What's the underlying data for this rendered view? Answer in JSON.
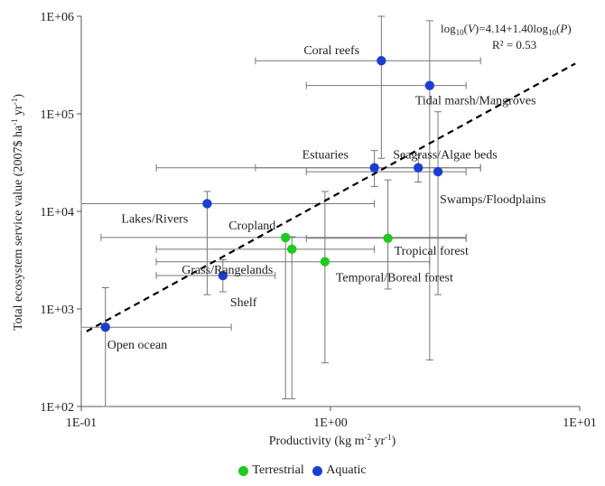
{
  "chart_data": {
    "type": "scatter",
    "x_scale": "log",
    "y_scale": "log",
    "xlim": [
      0.1,
      10
    ],
    "ylim": [
      100,
      1000000
    ],
    "x_tick_labels": [
      "1E-01",
      "1E+00",
      "1E+01"
    ],
    "y_tick_labels": [
      "1E+02",
      "1E+03",
      "1E+04",
      "1E+05",
      "1E+06"
    ],
    "xlabel_main": "Productivity (kg m",
    "xlabel_sup1": "-2",
    "xlabel_mid": " yr",
    "xlabel_sup2": "-1",
    "xlabel_end": ")",
    "ylabel_main": "Total ecosystem service value (2007$ ha",
    "ylabel_sup1": "-1",
    "ylabel_mid": " yr",
    "ylabel_sup2": "-1",
    "ylabel_end": ")",
    "grid": false,
    "regression": {
      "intercept": 4.14,
      "slope": 1.4,
      "equation_text": "log10(V)=4.14+1.40log10(P)",
      "r2_text": "R² = 0.53"
    },
    "legend": {
      "placement": "bottom",
      "items": [
        {
          "name": "Terrestrial",
          "color": "#1ecb1e"
        },
        {
          "name": "Aquatic",
          "color": "#1a3fd0"
        }
      ]
    },
    "series": [
      {
        "name": "Terrestrial",
        "color": "#1ecb1e",
        "points": [
          {
            "label": "Cropland",
            "x": 0.66,
            "y": 5400,
            "xerr": [
              0.12,
              3.5
            ],
            "yerr": [
              120,
              5800
            ]
          },
          {
            "label": "Grass/Rangelands",
            "x": 0.7,
            "y": 4100,
            "xerr": [
              0.2,
              1.5
            ],
            "yerr": [
              120,
              5500
            ]
          },
          {
            "label": "Temporal/Boreal forest",
            "x": 0.95,
            "y": 3050,
            "xerr": [
              0.2,
              2.5
            ],
            "yerr": [
              280,
              16000
            ]
          },
          {
            "label": "Tropical forest",
            "x": 1.7,
            "y": 5300,
            "xerr": [
              0.8,
              3.5
            ],
            "yerr": [
              1600,
              21000
            ]
          }
        ]
      },
      {
        "name": "Aquatic",
        "color": "#1a3fd0",
        "points": [
          {
            "label": "Coral reefs",
            "x": 1.6,
            "y": 350000,
            "xerr": [
              0.5,
              4.0
            ],
            "yerr": [
              35000,
              1000000
            ]
          },
          {
            "label": "Tidal marsh/Mangroves",
            "x": 2.5,
            "y": 195000,
            "xerr": [
              0.8,
              3.5
            ],
            "yerr": [
              300,
              900000
            ]
          },
          {
            "label": "Estuaries",
            "x": 1.5,
            "y": 28000,
            "xerr": [
              0.2,
              4.0
            ],
            "yerr": [
              18000,
              42000
            ]
          },
          {
            "label": "Seagrass/Algae beds",
            "x": 2.25,
            "y": 28000,
            "xerr": [
              0.5,
              4.0
            ],
            "yerr": [
              20000,
              38000
            ]
          },
          {
            "label": "Swamps/Floodplains",
            "x": 2.7,
            "y": 25500,
            "xerr": [
              0.8,
              3.5
            ],
            "yerr": [
              1400,
              105000
            ]
          },
          {
            "label": "Lakes/Rivers",
            "x": 0.32,
            "y": 12000,
            "xerr": [
              0.1,
              1.5
            ],
            "yerr": [
              1400,
              16000
            ]
          },
          {
            "label": "Shelf",
            "x": 0.37,
            "y": 2200,
            "xerr": [
              0.2,
              0.6
            ],
            "yerr": [
              1500,
              3200
            ]
          },
          {
            "label": "Open ocean",
            "x": 0.125,
            "y": 650,
            "xerr": [
              0.1,
              0.4
            ],
            "yerr": [
              100,
              1650
            ]
          }
        ]
      }
    ]
  }
}
